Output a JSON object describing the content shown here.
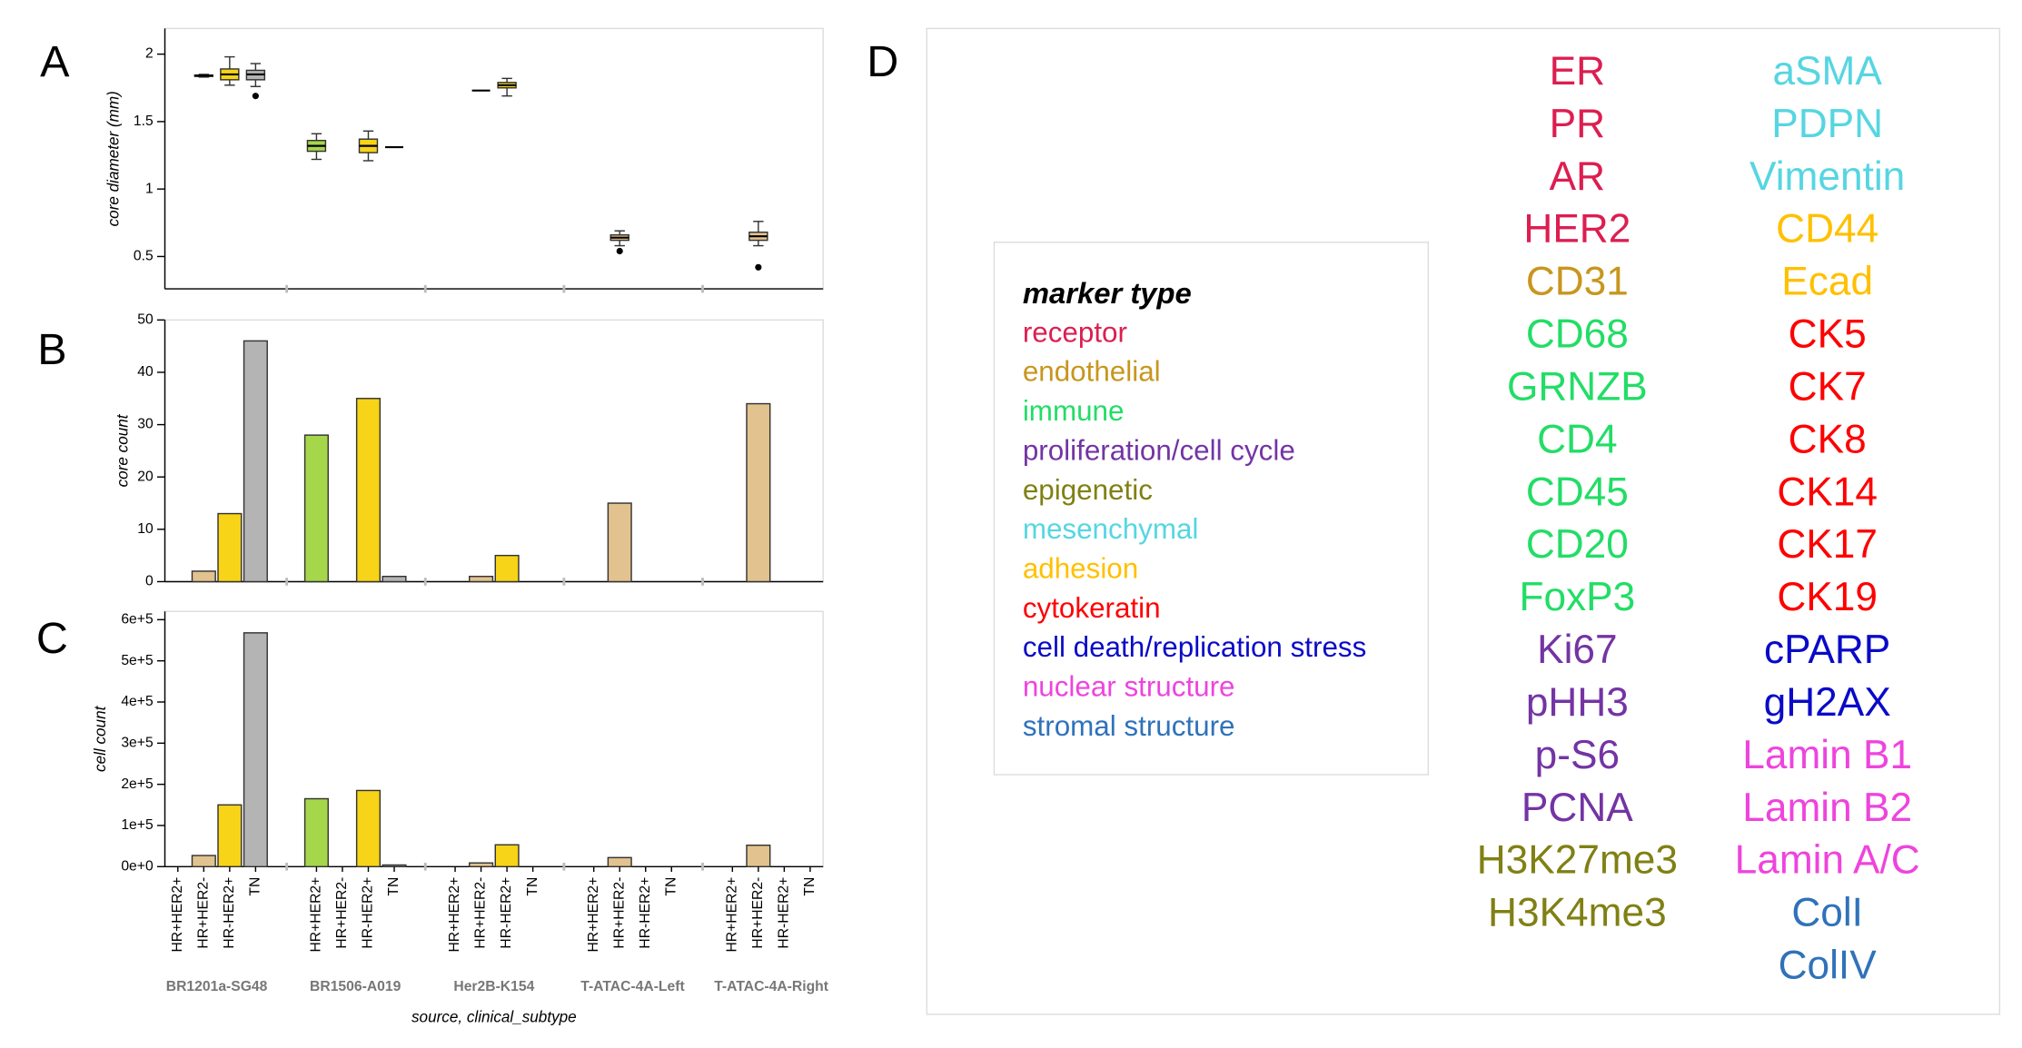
{
  "chart_data": [
    {
      "type": "box",
      "panel_label": "A",
      "ylabel": "core diameter (mm)",
      "ylim": [
        0.26,
        2.19
      ],
      "yticks": [
        0.5,
        1,
        1.5,
        2
      ],
      "series": [
        {
          "color": "#a6d64a",
          "boxes": [
            null,
            {
              "min": 1.22,
              "q1": 1.28,
              "median": 1.32,
              "q3": 1.36,
              "max": 1.41,
              "outliers": []
            },
            null,
            null,
            null
          ]
        },
        {
          "color": "#e2c28e",
          "boxes": [
            {
              "min": 1.83,
              "q1": 1.835,
              "median": 1.84,
              "q3": 1.845,
              "max": 1.85,
              "outliers": []
            },
            null,
            {
              "min": 1.73,
              "q1": 1.73,
              "median": 1.73,
              "q3": 1.73,
              "max": 1.73,
              "outliers": []
            },
            {
              "min": 0.58,
              "q1": 0.62,
              "median": 0.64,
              "q3": 0.66,
              "max": 0.69,
              "outliers": [
                0.54
              ]
            },
            {
              "min": 0.58,
              "q1": 0.62,
              "median": 0.65,
              "q3": 0.68,
              "max": 0.76,
              "outliers": [
                0.42
              ]
            }
          ]
        },
        {
          "color": "#f7d417",
          "boxes": [
            {
              "min": 1.77,
              "q1": 1.81,
              "median": 1.85,
              "q3": 1.89,
              "max": 1.98,
              "outliers": []
            },
            {
              "min": 1.21,
              "q1": 1.27,
              "median": 1.32,
              "q3": 1.37,
              "max": 1.43,
              "outliers": []
            },
            {
              "min": 1.69,
              "q1": 1.75,
              "median": 1.77,
              "q3": 1.79,
              "max": 1.82,
              "outliers": []
            },
            null,
            null
          ]
        },
        {
          "color": "#b4b4b4",
          "boxes": [
            {
              "min": 1.76,
              "q1": 1.81,
              "median": 1.85,
              "q3": 1.88,
              "max": 1.93,
              "outliers": [
                1.69
              ]
            },
            {
              "min": 1.31,
              "q1": 1.31,
              "median": 1.31,
              "q3": 1.31,
              "max": 1.31,
              "outliers": []
            },
            null,
            null,
            null
          ]
        }
      ]
    },
    {
      "type": "bar",
      "panel_label": "B",
      "ylabel": "core count",
      "ylim": [
        0,
        50
      ],
      "yticks": [
        0,
        10,
        20,
        30,
        40,
        50
      ],
      "series": [
        {
          "color": "#a6d64a",
          "values": [
            null,
            28,
            null,
            null,
            null
          ]
        },
        {
          "color": "#e2c28e",
          "values": [
            2,
            null,
            1,
            15,
            34
          ]
        },
        {
          "color": "#f7d417",
          "values": [
            13,
            35,
            5,
            null,
            null
          ]
        },
        {
          "color": "#b4b4b4",
          "values": [
            46,
            1,
            null,
            null,
            null
          ]
        }
      ]
    },
    {
      "type": "bar",
      "panel_label": "C",
      "ylabel": "cell count",
      "xlabel": "source, clinical_subtype",
      "ylim": [
        0,
        620000
      ],
      "yticks": [
        {
          "value": 0,
          "label": "0e+0"
        },
        {
          "value": 100000,
          "label": "1e+5"
        },
        {
          "value": 200000,
          "label": "2e+5"
        },
        {
          "value": 300000,
          "label": "3e+5"
        },
        {
          "value": 400000,
          "label": "4e+5"
        },
        {
          "value": 500000,
          "label": "5e+5"
        },
        {
          "value": 600000,
          "label": "6e+5"
        }
      ],
      "groups": [
        "BR1201a-SG48",
        "BR1506-A019",
        "Her2B-K154",
        "T-ATAC-4A-Left",
        "T-ATAC-4A-Right"
      ],
      "series": [
        {
          "name": "HR+HER2+",
          "color": "#a6d64a",
          "values": [
            null,
            165000,
            null,
            null,
            null
          ]
        },
        {
          "name": "HR+HER2-",
          "color": "#e2c28e",
          "values": [
            27000,
            null,
            9000,
            22000,
            52000
          ]
        },
        {
          "name": "HR-HER2+",
          "color": "#f7d417",
          "values": [
            150000,
            185000,
            53000,
            null,
            null
          ]
        },
        {
          "name": "TN",
          "color": "#b4b4b4",
          "values": [
            568000,
            4000,
            null,
            null,
            null
          ]
        }
      ]
    }
  ],
  "panel_d": {
    "panel_label": "D",
    "legend_title": "marker type",
    "legend": [
      {
        "name": "receptor",
        "color": "#dc1e50"
      },
      {
        "name": "endothelial",
        "color": "#c8961e"
      },
      {
        "name": "immune",
        "color": "#22dd66"
      },
      {
        "name": "proliferation/cell cycle",
        "color": "#7434a4"
      },
      {
        "name": "epigenetic",
        "color": "#808014"
      },
      {
        "name": "mesenchymal",
        "color": "#55d6e2"
      },
      {
        "name": "adhesion",
        "color": "#ffc000"
      },
      {
        "name": "cytokeratin",
        "color": "#ff0000"
      },
      {
        "name": "cell death/replication stress",
        "color": "#0a0ac8"
      },
      {
        "name": "nuclear structure",
        "color": "#ee44dd"
      },
      {
        "name": "stromal structure",
        "color": "#2f72ba"
      }
    ],
    "columns": [
      [
        {
          "label": "ER",
          "color": "#dc1e50"
        },
        {
          "label": "PR",
          "color": "#dc1e50"
        },
        {
          "label": "AR",
          "color": "#dc1e50"
        },
        {
          "label": "HER2",
          "color": "#dc1e50"
        },
        {
          "label": "CD31",
          "color": "#c8961e"
        },
        {
          "label": "CD68",
          "color": "#22dd66"
        },
        {
          "label": "GRNZB",
          "color": "#22dd66"
        },
        {
          "label": "CD4",
          "color": "#22dd66"
        },
        {
          "label": "CD45",
          "color": "#22dd66"
        },
        {
          "label": "CD20",
          "color": "#22dd66"
        },
        {
          "label": "FoxP3",
          "color": "#22dd66"
        },
        {
          "label": "Ki67",
          "color": "#7434a4"
        },
        {
          "label": "pHH3",
          "color": "#7434a4"
        },
        {
          "label": "p-S6",
          "color": "#7434a4"
        },
        {
          "label": "PCNA",
          "color": "#7434a4"
        },
        {
          "label": "H3K27me3",
          "color": "#808014"
        },
        {
          "label": "H3K4me3",
          "color": "#808014"
        }
      ],
      [
        {
          "label": "aSMA",
          "color": "#55d6e2"
        },
        {
          "label": "PDPN",
          "color": "#55d6e2"
        },
        {
          "label": "Vimentin",
          "color": "#55d6e2"
        },
        {
          "label": "CD44",
          "color": "#ffc000"
        },
        {
          "label": "Ecad",
          "color": "#ffc000"
        },
        {
          "label": "CK5",
          "color": "#ff0000"
        },
        {
          "label": "CK7",
          "color": "#ff0000"
        },
        {
          "label": "CK8",
          "color": "#ff0000"
        },
        {
          "label": "CK14",
          "color": "#ff0000"
        },
        {
          "label": "CK17",
          "color": "#ff0000"
        },
        {
          "label": "CK19",
          "color": "#ff0000"
        },
        {
          "label": "cPARP",
          "color": "#0a0ac8"
        },
        {
          "label": "gH2AX",
          "color": "#0a0ac8"
        },
        {
          "label": "Lamin B1",
          "color": "#ee44dd"
        },
        {
          "label": "Lamin B2",
          "color": "#ee44dd"
        },
        {
          "label": "Lamin A/C",
          "color": "#ee44dd"
        },
        {
          "label": "ColI",
          "color": "#2f72ba"
        },
        {
          "label": "ColIV",
          "color": "#2f72ba"
        }
      ]
    ]
  }
}
